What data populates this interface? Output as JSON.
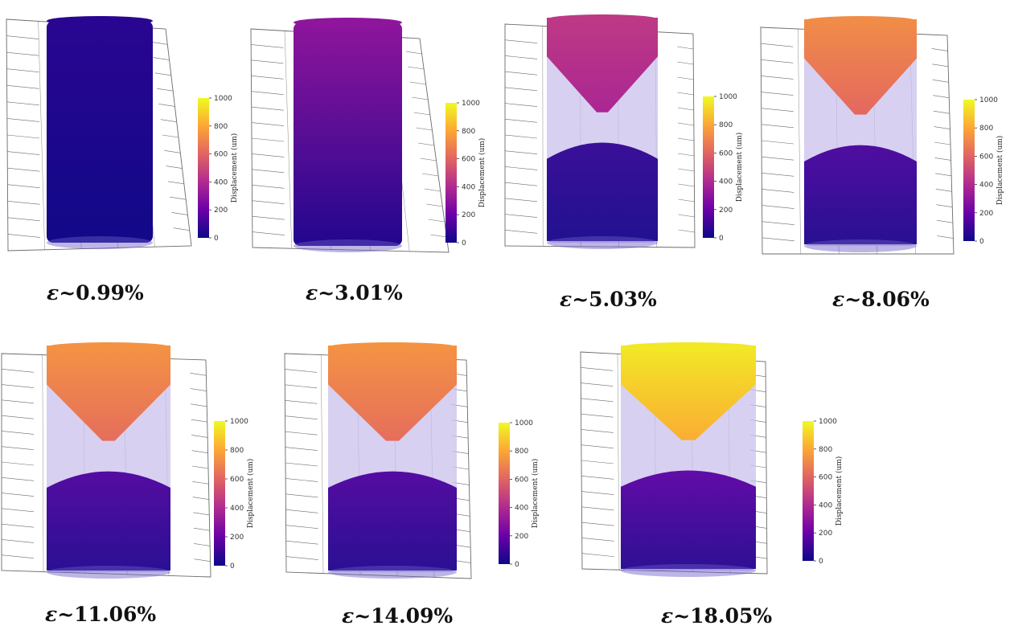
{
  "colorbar": {
    "title": "Displacement (um)",
    "ticks": [
      "0",
      "200",
      "400",
      "600",
      "800",
      "1000"
    ],
    "colors": [
      "#0d0887",
      "#6a00a8",
      "#b12a90",
      "#e16462",
      "#fca636",
      "#f0f921"
    ]
  },
  "panels": [
    {
      "id": "p1",
      "caption_symbol": "ε",
      "caption_value": "~0.99%",
      "top_level": 60,
      "band_level": null,
      "cone": false
    },
    {
      "id": "p2",
      "caption_symbol": "ε",
      "caption_value": "~3.01%",
      "top_level": 300,
      "band_level": null,
      "cone": false
    },
    {
      "id": "p3",
      "caption_symbol": "ε",
      "caption_value": "~5.03%",
      "top_level": 450,
      "band_level": 80,
      "cone": true
    },
    {
      "id": "p4",
      "caption_symbol": "ε",
      "caption_value": "~8.06%",
      "top_level": 720,
      "band_level": 130,
      "cone": true
    },
    {
      "id": "p5",
      "caption_symbol": "ε",
      "caption_value": "~11.06%",
      "top_level": 740,
      "band_level": 140,
      "cone": true
    },
    {
      "id": "p6",
      "caption_symbol": "ε",
      "caption_value": "~14.09%",
      "top_level": 740,
      "band_level": 140,
      "cone": true
    },
    {
      "id": "p7",
      "caption_symbol": "ε",
      "caption_value": "~18.05%",
      "top_level": 960,
      "band_level": 170,
      "cone": true
    }
  ]
}
